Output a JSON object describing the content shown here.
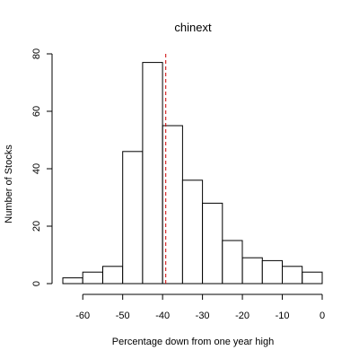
{
  "chart_data": {
    "type": "histogram",
    "title": "chinext",
    "xlabel": "Percentage down from one year high",
    "ylabel": "Number of Stocks",
    "bins": [
      {
        "start": -65,
        "end": -60,
        "count": 2
      },
      {
        "start": -60,
        "end": -55,
        "count": 4
      },
      {
        "start": -55,
        "end": -50,
        "count": 6
      },
      {
        "start": -50,
        "end": -45,
        "count": 46
      },
      {
        "start": -45,
        "end": -40,
        "count": 77
      },
      {
        "start": -40,
        "end": -35,
        "count": 55
      },
      {
        "start": -35,
        "end": -30,
        "count": 36
      },
      {
        "start": -30,
        "end": -25,
        "count": 28
      },
      {
        "start": -25,
        "end": -20,
        "count": 15
      },
      {
        "start": -20,
        "end": -15,
        "count": 9
      },
      {
        "start": -15,
        "end": -10,
        "count": 8
      },
      {
        "start": -10,
        "end": -5,
        "count": 6
      },
      {
        "start": -5,
        "end": 0,
        "count": 4
      }
    ],
    "xticks": [
      -60,
      -50,
      -40,
      -30,
      -20,
      -10,
      0
    ],
    "yticks": [
      0,
      20,
      40,
      60,
      80
    ],
    "xlim": [
      -65,
      0
    ],
    "ylim": [
      0,
      80
    ],
    "reference_line": {
      "x": -39.2,
      "color": "#cc0000",
      "style": "dashed"
    },
    "grid": false,
    "legend": "none"
  }
}
